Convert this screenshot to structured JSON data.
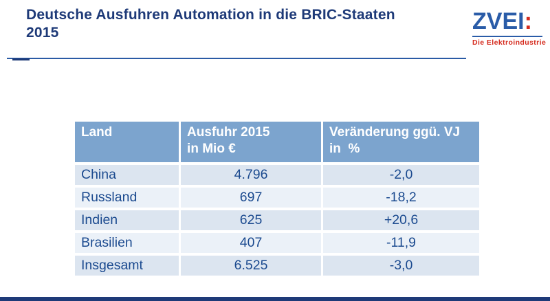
{
  "header": {
    "title_line1": "Deutsche Ausfuhren Automation in die BRIC-Staaten",
    "title_line2": "2015"
  },
  "logo": {
    "name": "ZVEI",
    "colon": ":",
    "tagline": "Die Elektroindustrie"
  },
  "table": {
    "headers": [
      {
        "line1": "Land",
        "line2": ""
      },
      {
        "line1": "Ausfuhr 2015",
        "line2": "in Mio €"
      },
      {
        "line1": "Veränderung ggü. VJ",
        "line2": "in  %"
      }
    ],
    "rows": [
      {
        "land": "China",
        "ausfuhr": "4.796",
        "veraenderung": "-2,0"
      },
      {
        "land": "Russland",
        "ausfuhr": "697",
        "veraenderung": "-18,2"
      },
      {
        "land": "Indien",
        "ausfuhr": "625",
        "veraenderung": "+20,6"
      },
      {
        "land": "Brasilien",
        "ausfuhr": "407",
        "veraenderung": "-11,9"
      },
      {
        "land": "Insgesamt",
        "ausfuhr": "6.525",
        "veraenderung": "-3,0"
      }
    ]
  },
  "chart_data": {
    "type": "table",
    "title": "Deutsche Ausfuhren Automation in die BRIC-Staaten 2015",
    "columns": [
      "Land",
      "Ausfuhr 2015 in Mio €",
      "Veränderung ggü. VJ in %"
    ],
    "rows": [
      [
        "China",
        "4.796",
        "-2,0"
      ],
      [
        "Russland",
        "697",
        "-18,2"
      ],
      [
        "Indien",
        "625",
        "+20,6"
      ],
      [
        "Brasilien",
        "407",
        "-11,9"
      ],
      [
        "Insgesamt",
        "6.525",
        "-3,0"
      ]
    ],
    "units": {
      "ausfuhr": "Mio €",
      "veraenderung": "% ggü. Vorjahr"
    }
  },
  "colors": {
    "title_navy": "#1e3a78",
    "rule_blue": "#2a5ba5",
    "header_blue": "#7ca4ce",
    "row_odd": "#dce5f0",
    "row_even": "#ebf1f8",
    "body_text": "#1b4a8f",
    "logo_blue": "#2a5ca8",
    "logo_red": "#d52b1e",
    "footer_navy": "#1e3a78"
  }
}
